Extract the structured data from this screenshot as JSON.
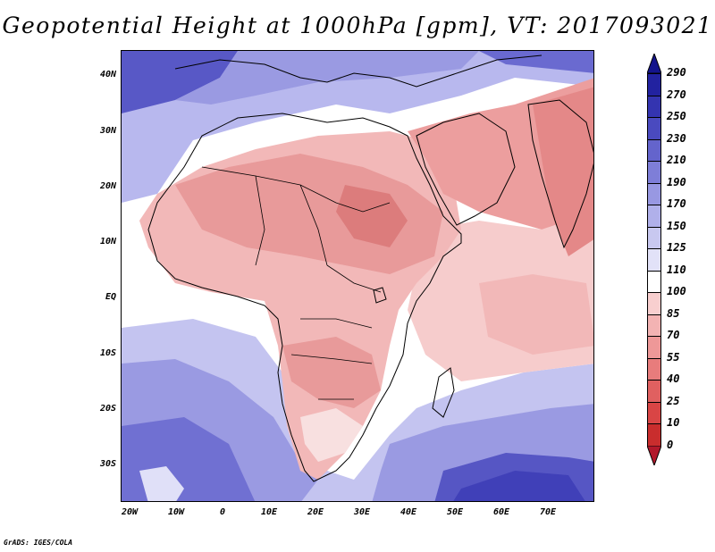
{
  "title": "Geopotential Height at 1000hPa [gpm], VT: 2017093021",
  "variable": "Geopotential Height",
  "level": "1000hPa",
  "units": "gpm",
  "valid_time": "2017093021",
  "credit": "GrADS: IGES/COLA",
  "lat_labels": [
    "40N",
    "30N",
    "20N",
    "10N",
    "EQ",
    "10S",
    "20S",
    "30S"
  ],
  "lon_labels": [
    "20W",
    "10W",
    "0",
    "10E",
    "20E",
    "30E",
    "40E",
    "50E",
    "60E",
    "70E"
  ],
  "colorbar": {
    "levels": [
      "0",
      "10",
      "25",
      "40",
      "55",
      "70",
      "85",
      "100",
      "110",
      "125",
      "150",
      "170",
      "190",
      "210",
      "230",
      "250",
      "270",
      "290"
    ],
    "colors": [
      "#b2182b",
      "#c92d2d",
      "#d94545",
      "#e06060",
      "#e87c7c",
      "#ee9898",
      "#f3b3b3",
      "#f8cfcf",
      "#ffffff",
      "#e2e2f8",
      "#c8c8f0",
      "#b0b0ea",
      "#9898e2",
      "#7e7ed8",
      "#6464cc",
      "#4a4abf",
      "#3434b0",
      "#2222a0",
      "#14148c"
    ]
  },
  "colors": {
    "ocean_south": "#7c7cd6",
    "ocean_tropical": "#f8d8d8",
    "land_hot": "#e89090",
    "land_warm": "#f2b8b8",
    "equatorial_white": "#ffffff",
    "north_cool": "#b8b8ee"
  }
}
